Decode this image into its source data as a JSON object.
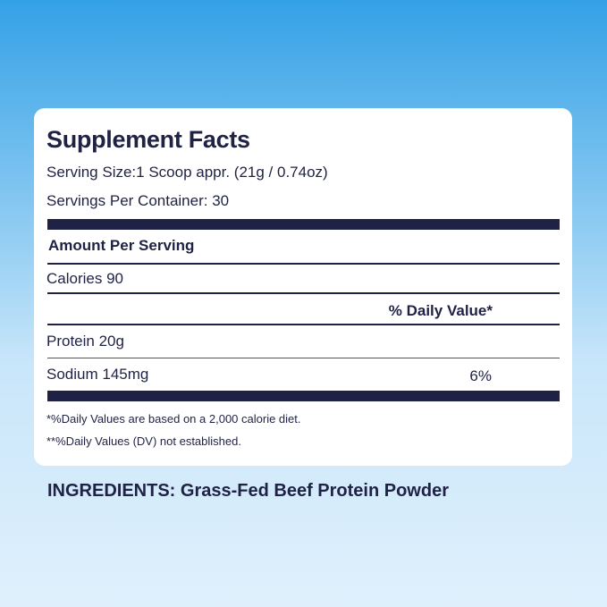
{
  "label": {
    "title": "Supplement Facts",
    "serving_size": "Serving Size:1 Scoop appr. (21g / 0.74oz)",
    "servings_per_container": "Servings Per Container: 30",
    "amount_per_serving": "Amount Per Serving",
    "calories": "Calories 90",
    "daily_value_header": "% Daily Value*",
    "rows": [
      {
        "name": "Protein 20g",
        "dv": ""
      },
      {
        "name": "Sodium 145mg",
        "dv": "6%"
      }
    ],
    "footnotes": [
      "*%Daily Values are based on a 2,000 calorie diet.",
      "**%Daily Values (DV) not established."
    ]
  },
  "ingredients": "INGREDIENTS: Grass-Fed Beef Protein Powder",
  "colors": {
    "text": "#1f2244",
    "background_top": "#34a1e6",
    "background_bottom": "#dff0fc"
  }
}
